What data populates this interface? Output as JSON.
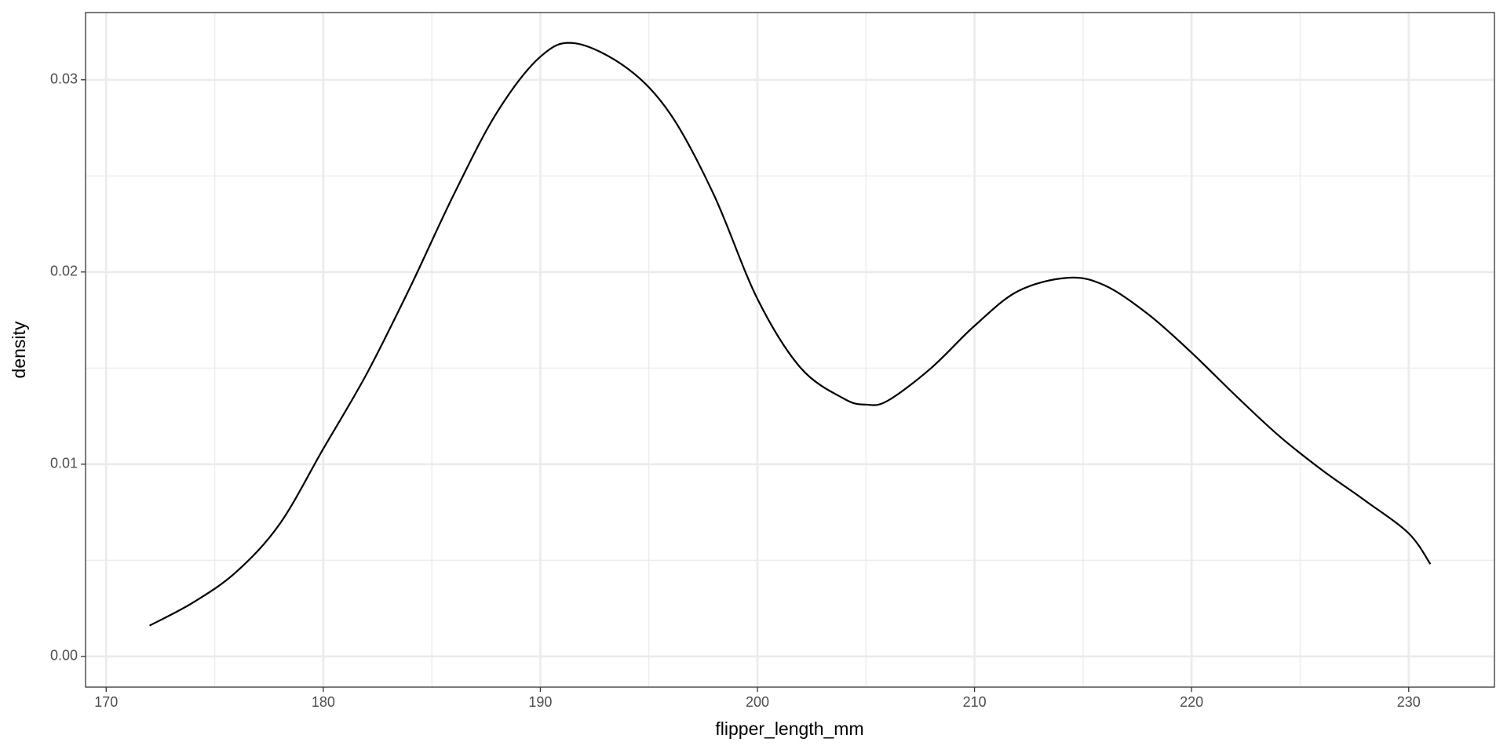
{
  "chart_data": {
    "type": "line",
    "x_label": "flipper_length_mm",
    "y_label": "density",
    "x": [
      172,
      174,
      176,
      178,
      180,
      182,
      184,
      186,
      188,
      190,
      191.6,
      194,
      196,
      198,
      200,
      202,
      204,
      205,
      206,
      208,
      210,
      212,
      214.3,
      216,
      218,
      220,
      222,
      224,
      226,
      228,
      230,
      231
    ],
    "series": [
      {
        "color": "#000000",
        "values": [
          0.0016,
          0.0028,
          0.0044,
          0.0069,
          0.0108,
          0.0147,
          0.0192,
          0.024,
          0.0283,
          0.0312,
          0.0319,
          0.0306,
          0.0282,
          0.024,
          0.0186,
          0.015,
          0.0134,
          0.0131,
          0.0133,
          0.015,
          0.0172,
          0.019,
          0.0197,
          0.0193,
          0.0178,
          0.0158,
          0.0136,
          0.0115,
          0.0097,
          0.0081,
          0.0064,
          0.0048
        ]
      }
    ],
    "xlim": [
      169.05,
      233.95
    ],
    "ylim": [
      -0.0016,
      0.0335
    ],
    "xticks": [
      170,
      180,
      190,
      200,
      210,
      220,
      230
    ],
    "yticks": [
      {
        "value": 0,
        "label": "0.00"
      },
      {
        "value": 0.01,
        "label": "0.01"
      },
      {
        "value": 0.02,
        "label": "0.02"
      },
      {
        "value": 0.03,
        "label": "0.03"
      }
    ],
    "x_minor_grid": [
      175,
      185,
      195,
      205,
      215,
      225
    ],
    "y_minor_grid": [
      0.005,
      0.015,
      0.025
    ],
    "grid": true
  }
}
